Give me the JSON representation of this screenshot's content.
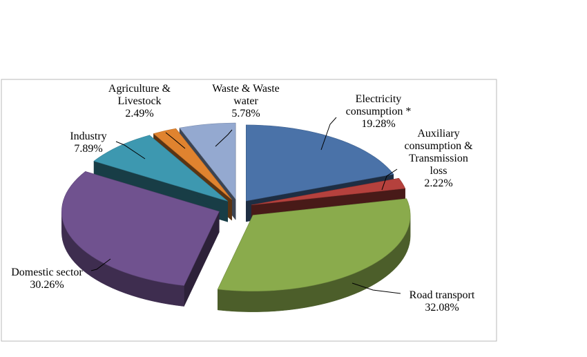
{
  "chart_data": {
    "type": "pie",
    "style": "3d-exploded",
    "slices": [
      {
        "label_lines": [
          "Electricity",
          "consumption *"
        ],
        "value": 19.28,
        "value_text": "19.28%",
        "color": "#4a72a8"
      },
      {
        "label_lines": [
          "Auxiliary",
          "consumption &",
          "Transmission",
          "loss"
        ],
        "value": 2.22,
        "value_text": "2.22%",
        "color": "#b5413d"
      },
      {
        "label_lines": [
          "Road transport"
        ],
        "value": 32.08,
        "value_text": "32.08%",
        "color": "#8aab4c"
      },
      {
        "label_lines": [
          "Domestic sector"
        ],
        "value": 30.26,
        "value_text": "30.26%",
        "color": "#70528f"
      },
      {
        "label_lines": [
          "Industry"
        ],
        "value": 7.89,
        "value_text": "7.89%",
        "color": "#3d98b0"
      },
      {
        "label_lines": [
          "Agriculture &",
          "Livestock"
        ],
        "value": 2.49,
        "value_text": "2.49%",
        "color": "#e0832f"
      },
      {
        "label_lines": [
          "Waste & Waste",
          "water"
        ],
        "value": 5.78,
        "value_text": "5.78%",
        "color": "#94a9d0"
      }
    ],
    "legend": "none",
    "data_labels": "outside-with-leader-lines"
  }
}
